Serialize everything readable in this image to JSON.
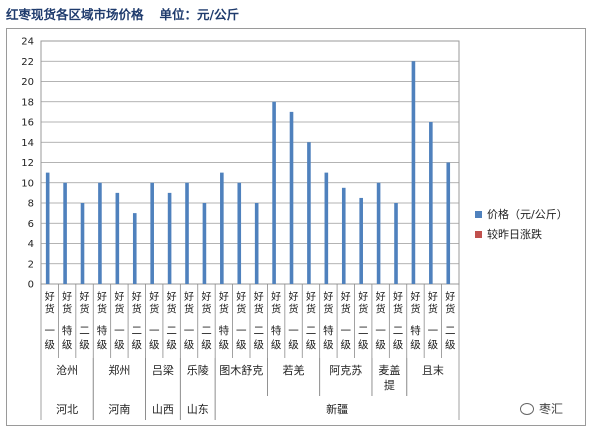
{
  "header": {
    "title": "红枣现货各区域市场价格",
    "unit": "单位：元/公斤"
  },
  "chart_data": {
    "type": "bar",
    "categories": [
      "一级",
      "特级",
      "二级",
      "特级",
      "一级",
      "二级",
      "一级",
      "二级",
      "一级",
      "二级",
      "特级",
      "一级",
      "二级",
      "特级",
      "一级",
      "二级",
      "特级",
      "一级",
      "二级",
      "一级",
      "二级",
      "特级",
      "一级",
      "二级"
    ],
    "category_prefix": "好货",
    "series": [
      {
        "name": "价格（元/公斤）",
        "color": "#4f81bd",
        "values": [
          11,
          10,
          8,
          10,
          9,
          7,
          10,
          9,
          10,
          8,
          11,
          10,
          8,
          18,
          17,
          14,
          11,
          9.5,
          8.5,
          10,
          8,
          22,
          16,
          12
        ]
      },
      {
        "name": "较昨日涨跌",
        "color": "#c0504d",
        "values": [
          0,
          0,
          0,
          0,
          0,
          0,
          0,
          0,
          0,
          0,
          0,
          0,
          0,
          0,
          0,
          0,
          0,
          0,
          0,
          0,
          0,
          0,
          0,
          0
        ]
      }
    ],
    "ylim": [
      0,
      24
    ],
    "yticks": [
      0,
      2,
      4,
      6,
      8,
      10,
      12,
      14,
      16,
      18,
      20,
      22,
      24
    ],
    "grid": true,
    "legend_position": "right",
    "markets": [
      {
        "name": "沧州",
        "start": 0,
        "count": 3
      },
      {
        "name": "郑州",
        "start": 3,
        "count": 3
      },
      {
        "name": "吕梁",
        "start": 6,
        "count": 2
      },
      {
        "name": "乐陵",
        "start": 8,
        "count": 2
      },
      {
        "name": "图木舒克",
        "start": 10,
        "count": 3
      },
      {
        "name": "若羌",
        "start": 13,
        "count": 3
      },
      {
        "name": "阿克苏",
        "start": 16,
        "count": 3
      },
      {
        "name": "麦盖提",
        "start": 19,
        "count": 2
      },
      {
        "name": "且末",
        "start": 21,
        "count": 3
      }
    ],
    "provinces": [
      {
        "name": "河北",
        "start": 0,
        "count": 3
      },
      {
        "name": "河南",
        "start": 3,
        "count": 3
      },
      {
        "name": "山西",
        "start": 6,
        "count": 2
      },
      {
        "name": "山东",
        "start": 8,
        "count": 2
      },
      {
        "name": "新疆",
        "start": 10,
        "count": 14
      }
    ]
  },
  "watermark": {
    "text": "枣汇",
    "icon": "wechat-icon"
  }
}
